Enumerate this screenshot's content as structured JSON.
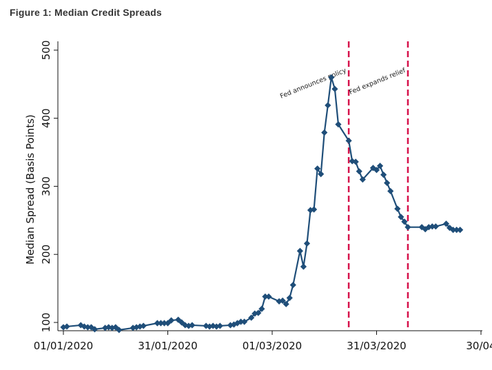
{
  "figure_title": "Figure 1: Median Credit Spreads",
  "chart_data": {
    "type": "line",
    "title": "Figure 1: Median Credit Spreads",
    "xlabel": "",
    "ylabel": "Median Spread (Basis Points)",
    "x_ticks": [
      "01/01/2020",
      "31/01/2020",
      "01/03/2020",
      "31/03/2020",
      "30/04"
    ],
    "x_tick_days": [
      1,
      31,
      61,
      91,
      121
    ],
    "y_ticks": [
      100,
      200,
      300,
      400,
      500
    ],
    "ylim": [
      80,
      510
    ],
    "xlim": [
      0,
      121
    ],
    "grid": false,
    "marker": "diamond",
    "colors": {
      "line": "#1f4e79",
      "marker": "#1f4e79",
      "vline": "#d6104a"
    },
    "annotations": [
      {
        "label": "Fed announces policy",
        "x_day": 83
      },
      {
        "label": "Fed expands relief",
        "x_day": 100
      }
    ],
    "series": [
      {
        "name": "",
        "x_day": [
          1,
          2,
          6,
          7,
          8,
          9,
          10,
          13,
          14,
          15,
          16,
          17,
          21,
          22,
          23,
          24,
          28,
          29,
          30,
          31,
          32,
          34,
          35,
          36,
          37,
          38,
          42,
          43,
          44,
          45,
          46,
          49,
          50,
          51,
          52,
          53,
          55,
          56,
          57,
          58,
          59,
          60,
          63,
          64,
          65,
          66,
          67,
          69,
          70,
          71,
          72,
          73,
          74,
          75,
          76,
          77,
          78,
          79,
          80,
          83,
          84,
          85,
          86,
          87,
          90,
          91,
          92,
          93,
          94,
          95,
          97,
          98,
          99,
          100,
          104,
          105,
          106,
          107,
          108,
          111,
          112,
          113,
          114,
          115
        ],
        "y": [
          93,
          94,
          96,
          94,
          93,
          93,
          90,
          92,
          93,
          92,
          93,
          89,
          92,
          93,
          94,
          95,
          99,
          99,
          99,
          99,
          103,
          104,
          100,
          96,
          95,
          96,
          95,
          94,
          95,
          94,
          95,
          96,
          97,
          99,
          101,
          101,
          107,
          113,
          114,
          120,
          138,
          138,
          131,
          132,
          127,
          136,
          155,
          205,
          182,
          216,
          265,
          266,
          326,
          318,
          379,
          419,
          460,
          443,
          391,
          367,
          337,
          336,
          322,
          310,
          327,
          324,
          330,
          317,
          305,
          293,
          267,
          255,
          248,
          240,
          240,
          237,
          240,
          241,
          241,
          245,
          239,
          236,
          236,
          236
        ]
      }
    ]
  }
}
